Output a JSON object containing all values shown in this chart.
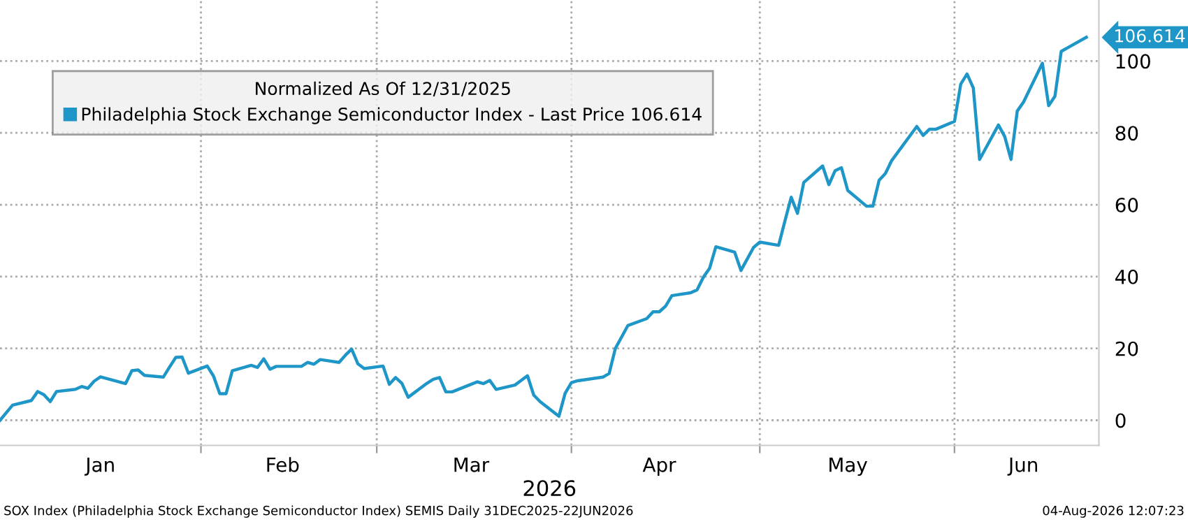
{
  "chart_data": {
    "type": "line",
    "legend_title": "Normalized As Of 12/31/2025",
    "xlabel": "2026",
    "x": [
      "2025-12-31",
      "2026-01-02",
      "2026-01-05",
      "2026-01-06",
      "2026-01-07",
      "2026-01-08",
      "2026-01-09",
      "2026-01-12",
      "2026-01-13",
      "2026-01-14",
      "2026-01-15",
      "2026-01-16",
      "2026-01-20",
      "2026-01-21",
      "2026-01-22",
      "2026-01-23",
      "2026-01-26",
      "2026-01-27",
      "2026-01-28",
      "2026-01-29",
      "2026-01-30",
      "2026-02-02",
      "2026-02-03",
      "2026-02-04",
      "2026-02-05",
      "2026-02-06",
      "2026-02-09",
      "2026-02-10",
      "2026-02-11",
      "2026-02-12",
      "2026-02-13",
      "2026-02-17",
      "2026-02-18",
      "2026-02-19",
      "2026-02-20",
      "2026-02-23",
      "2026-02-24",
      "2026-02-25",
      "2026-02-26",
      "2026-02-27",
      "2026-03-02",
      "2026-03-03",
      "2026-03-04",
      "2026-03-05",
      "2026-03-06",
      "2026-03-09",
      "2026-03-10",
      "2026-03-11",
      "2026-03-12",
      "2026-03-13",
      "2026-03-16",
      "2026-03-17",
      "2026-03-18",
      "2026-03-19",
      "2026-03-20",
      "2026-03-23",
      "2026-03-24",
      "2026-03-25",
      "2026-03-26",
      "2026-03-27",
      "2026-03-30",
      "2026-03-31",
      "2026-04-01",
      "2026-04-02",
      "2026-04-06",
      "2026-04-07",
      "2026-04-08",
      "2026-04-09",
      "2026-04-10",
      "2026-04-13",
      "2026-04-14",
      "2026-04-15",
      "2026-04-16",
      "2026-04-17",
      "2026-04-20",
      "2026-04-21",
      "2026-04-22",
      "2026-04-23",
      "2026-04-24",
      "2026-04-27",
      "2026-04-28",
      "2026-04-29",
      "2026-04-30",
      "2026-05-01",
      "2026-05-04",
      "2026-05-05",
      "2026-05-06",
      "2026-05-07",
      "2026-05-08",
      "2026-05-11",
      "2026-05-12",
      "2026-05-13",
      "2026-05-14",
      "2026-05-15",
      "2026-05-18",
      "2026-05-19",
      "2026-05-20",
      "2026-05-21",
      "2026-05-22",
      "2026-05-26",
      "2026-05-27",
      "2026-05-28",
      "2026-05-29",
      "2026-06-01",
      "2026-06-02",
      "2026-06-03",
      "2026-06-04",
      "2026-06-05",
      "2026-06-08",
      "2026-06-09",
      "2026-06-10",
      "2026-06-11",
      "2026-06-12",
      "2026-06-15",
      "2026-06-16",
      "2026-06-17",
      "2026-06-18",
      "2026-06-22"
    ],
    "series": [
      {
        "name": "Philadelphia Stock Exchange Semiconductor Index - Last Price 106.614",
        "color": "#1f96c8",
        "values": [
          0,
          4.2,
          5.5,
          8.0,
          7.1,
          5.2,
          8.0,
          8.6,
          9.4,
          8.9,
          10.9,
          12.1,
          10.2,
          13.8,
          14.0,
          12.5,
          12.0,
          14.8,
          17.5,
          17.6,
          13.1,
          15.1,
          12.3,
          7.4,
          7.4,
          13.8,
          15.3,
          14.7,
          17.1,
          14.2,
          15.0,
          15.0,
          16.1,
          15.6,
          16.9,
          16.1,
          18.1,
          19.8,
          15.7,
          14.4,
          15.1,
          10.0,
          11.9,
          10.3,
          6.4,
          10.3,
          11.4,
          11.9,
          7.9,
          7.9,
          10.0,
          10.7,
          10.2,
          11.1,
          8.6,
          9.8,
          11.1,
          12.4,
          7.0,
          5.2,
          1.1,
          7.5,
          10.5,
          11.0,
          12.0,
          13.0,
          20.0,
          23.2,
          26.4,
          28.3,
          30.2,
          30.2,
          31.8,
          34.7,
          35.5,
          36.3,
          39.8,
          42.3,
          48.3,
          46.8,
          41.7,
          44.9,
          48.1,
          49.6,
          48.7,
          55.5,
          62.1,
          57.6,
          66.2,
          70.8,
          65.6,
          69.5,
          70.3,
          64.0,
          59.6,
          59.6,
          66.8,
          68.7,
          72.3,
          81.8,
          79.3,
          81.0,
          81.0,
          83.2,
          93.6,
          96.4,
          92.5,
          72.6,
          82.2,
          79.0,
          72.6,
          86.1,
          88.6,
          99.4,
          87.6,
          90.2,
          102.7,
          106.614
        ]
      }
    ],
    "xlim": [
      "2025-12-31",
      "2026-06-24"
    ],
    "xticks": [
      {
        "value": "2026-02-01",
        "label": null
      },
      {
        "value": "2026-03-01",
        "label": null
      },
      {
        "value": "2026-04-01",
        "label": null
      },
      {
        "value": "2026-05-01",
        "label": null
      },
      {
        "value": "2026-06-01",
        "label": null
      },
      {
        "value": "2026-01-16",
        "label": "Jan"
      },
      {
        "value": "2026-02-14",
        "label": "Feb"
      },
      {
        "value": "2026-03-16",
        "label": "Mar"
      },
      {
        "value": "2026-04-15",
        "label": "Apr"
      },
      {
        "value": "2026-05-15",
        "label": "May"
      },
      {
        "value": "2026-06-12",
        "label": "Jun"
      }
    ],
    "ylim": [
      -7,
      117
    ],
    "yticks": [
      0,
      20,
      40,
      60,
      80,
      100
    ],
    "grid": true,
    "legend": "top left",
    "marker": "none",
    "line_style": "solid",
    "annotations": [
      {
        "text": "106.614",
        "x": "2026-06-22",
        "y": 106.614
      },
      "SOX Index (Philadelphia Stock Exchange Semiconductor Index) SEMIS Daily 31DEC2025-22JUN2026",
      "04-Aug-2026 12:07:23"
    ]
  }
}
